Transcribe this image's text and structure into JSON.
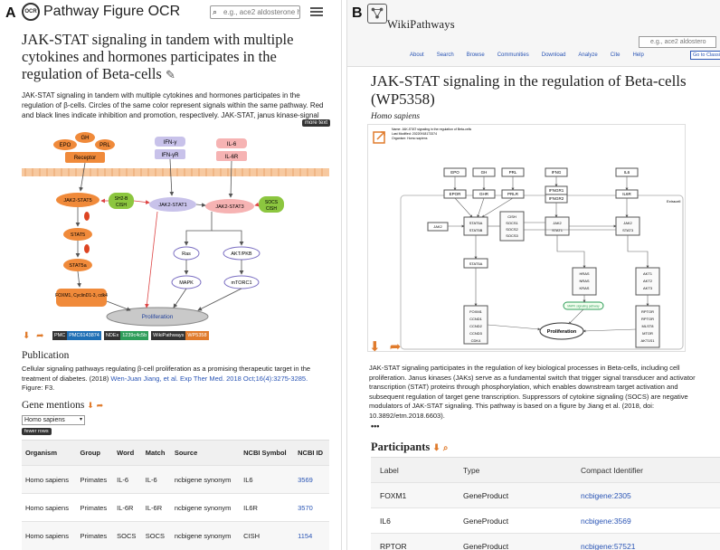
{
  "panel_a": {
    "label": "A",
    "app_title": "Pathway Figure OCR",
    "search_placeholder": "e.g., ace2 aldosterone h",
    "title": "JAK-STAT signaling in tandem with multiple cytokines and hormones participates in the regulation of Beta-cells",
    "description": "JAK-STAT signaling in tandem with multiple cytokines and hormones participates in the regulation of β-cells. Circles of the same color represent signals within the same pathway. Red and black lines indicate inhibition and promotion, respectively. JAK-STAT, janus kinase-signal transducers and",
    "more_text_label": "more text",
    "figure": {
      "epo": "EPO",
      "gh": "GH",
      "prl": "PRL",
      "receptor": "Receptor",
      "ifn": "IFN-γ",
      "ifnr": "IFN-γR",
      "il6": "IL-6",
      "il6r": "IL-6R",
      "jak2stat5": "JAK2-STAT5",
      "sh2b": "SH2-B",
      "cish": "CISH",
      "jak2stat1": "JAK2-STAT1",
      "jak2stat3": "JAK2-STAT3",
      "socs": "SOCS",
      "cish2": "CISH",
      "stat5": "STAT5",
      "stat5a": "STAT5a",
      "ras": "Ras",
      "akt": "AKT/PKB",
      "mapk": "MAPK",
      "mtorc1": "mTORC1",
      "foxm1": "FOXM1, CyclinD1-3, cdk4",
      "proliferation": "Proliferation"
    },
    "badges": [
      {
        "key": "PMC",
        "value": "PMC6143874",
        "color": "#1f6fb5"
      },
      {
        "key": "NDEx",
        "value": "1239c4c5b",
        "color": "#2e9d5a"
      },
      {
        "key": "WikiPathways",
        "value": "WP5358",
        "color": "#e07b2c"
      }
    ],
    "publication_heading": "Publication",
    "publication_text": "Cellular signaling pathways regulating β-cell proliferation as a promising therapeutic target in the treatment of diabetes. (2018)",
    "publication_link": "Wen-Juan Jiang, et al. Exp Ther Med. 2018 Oct;16(4):3275-3285.",
    "publication_figure": "Figure: F3.",
    "gene_mentions_heading": "Gene mentions",
    "species_select": "Homo sapiens",
    "fewer_rows_label": "fewer rows",
    "table_headers": [
      "Organism",
      "Group",
      "Word",
      "Match",
      "Source",
      "NCBI Symbol",
      "NCBI ID"
    ],
    "table_rows": [
      [
        "Homo sapiens",
        "Primates",
        "IL-6",
        "IL-6",
        "ncbigene synonym",
        "IL6",
        "3569"
      ],
      [
        "Homo sapiens",
        "Primates",
        "IL-6R",
        "IL-6R",
        "ncbigene synonym",
        "IL6R",
        "3570"
      ],
      [
        "Homo sapiens",
        "Primates",
        "SOCS",
        "SOCS",
        "ncbigene synonym",
        "CISH",
        "1154"
      ]
    ]
  },
  "panel_b": {
    "label": "B",
    "logo_text": "WikiPathways",
    "search_placeholder": "e.g., ace2 aldostero",
    "nav": [
      "About",
      "Search",
      "Browse",
      "Communities",
      "Download",
      "Analyze",
      "Cite",
      "Help"
    ],
    "classic_label": "Go to Classic Site",
    "title": "JAK-STAT signaling in the regulation of Beta-cells (WP5358)",
    "species": "Homo sapiens",
    "figure": {
      "meta_name": "Name: JAK-STAT signaling in the regulation of Beta-cells",
      "meta_modified": "Last Modified: 20220918173374",
      "meta_organism": "Organism: Homo sapiens",
      "epo": "EPO",
      "gh": "GH",
      "prl": "PRL",
      "ifng": "IFNG",
      "il6": "IL6",
      "epor": "EPOR",
      "ghr": "GHR",
      "prlr": "PRLR",
      "ifngr1": "IFNGR1",
      "ifngr2": "IFNGR2",
      "il6r": "IL6R",
      "extracell": "Extracell",
      "jak2": "JAK2",
      "stat5a": "STAT5A",
      "stat5b": "STAT5B",
      "cish": "CISH",
      "socs1": "SOCS1",
      "socs2": "SOCS2",
      "socs3": "SOCS3",
      "jak2b": "JAK2",
      "stat1": "STAT1",
      "jak2c": "JAK2",
      "stat3": "STAT3",
      "stat5a2": "STAT5A",
      "hras": "HRAS",
      "nras": "NRAS",
      "kras": "KRAS",
      "akt1": "AKT1",
      "akt2": "AKT2",
      "akt3": "AKT3",
      "mapk_path": "MAPK signaling pathway",
      "foxm1": "FOXM1",
      "ccnd1": "CCND1",
      "ccnd2": "CCND2",
      "ccnd3": "CCND3",
      "cdk4": "CDK4",
      "proliferation": "Proliferation",
      "rptor": "RPTOR",
      "rptor2": "RPTOR",
      "mlst8": "MLST8",
      "mtor": "MTOR",
      "akt1s1": "AKT1S1"
    },
    "description": "JAK-STAT signaling participates in the regulation of key biological processes in Beta-cells, including cell proliferation. Janus kinases (JAKs) serve as a fundamental switch that trigger signal transducer and activator transcription (STAT) proteins through phosphorylation, which enables downstream target activation and subsequent regulation of target gene transcription. Suppressors of cytokine signaling (SOCS) are negative modulators of JAK-STAT signaling. This pathway is based on a figure by Jiang et al. (2018, doi: 10.3892/etm.2018.6603).",
    "more_dots": "•••",
    "participants_heading": "Participants",
    "table_headers": [
      "Label",
      "Type",
      "Compact Identifier"
    ],
    "table_rows": [
      [
        "FOXM1",
        "GeneProduct",
        "ncbigene:2305"
      ],
      [
        "IL6",
        "GeneProduct",
        "ncbigene:3569"
      ],
      [
        "RPTOR",
        "GeneProduct",
        "ncbigene:57521"
      ]
    ]
  },
  "colors": {
    "link": "#2a55b5",
    "accent_orange": "#e07b2c",
    "stat_orange": "#f08a3a",
    "purple": "#c8c2ea",
    "pink": "#f6b3b3",
    "green": "#8cc63f"
  }
}
